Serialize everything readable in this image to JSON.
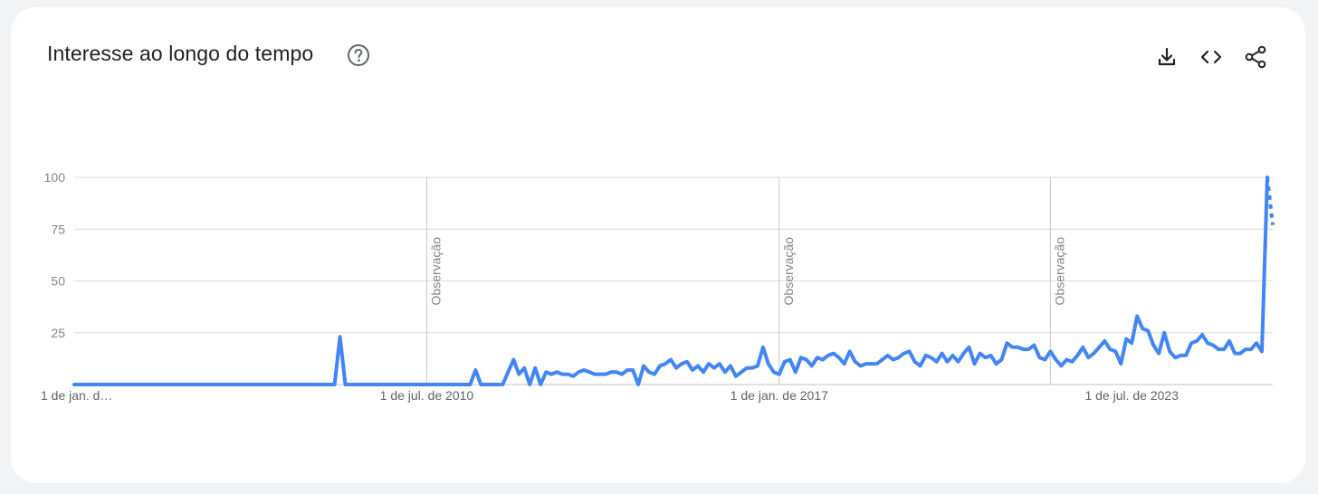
{
  "title": "Interesse ao longo do tempo",
  "icons": {
    "help": "help-circle-icon",
    "download": "download-icon",
    "embed": "code-embed-icon",
    "share": "share-icon"
  },
  "colors": {
    "line": "#4285f4",
    "grid": "#dadce0",
    "card": "#ffffff",
    "background": "#f1f3f4"
  },
  "chart_data": {
    "type": "line",
    "title": "Interesse ao longo do tempo",
    "xlabel": "",
    "ylabel": "",
    "ylim": [
      0,
      100
    ],
    "grid": true,
    "y_ticks": [
      100,
      75,
      50,
      25
    ],
    "x_tick_labels": [
      {
        "label": "1 de jan. d…",
        "value": 2004.0
      },
      {
        "label": "1 de jul. de 2010",
        "value": 2010.5
      },
      {
        "label": "1 de jan. de 2017",
        "value": 2017.0
      },
      {
        "label": "1 de jul. de 2023",
        "value": 2023.5
      }
    ],
    "annotations": [
      {
        "label": "Observação",
        "value": 2010.5
      },
      {
        "label": "Observação",
        "value": 2017.0
      },
      {
        "label": "Observação",
        "value": 2022.0
      }
    ],
    "series": [
      {
        "values": [
          [
            2004.0,
            0
          ],
          [
            2008.8,
            0
          ],
          [
            2008.9,
            23
          ],
          [
            2009.0,
            0
          ],
          [
            2011.3,
            0
          ],
          [
            2011.4,
            7
          ],
          [
            2011.5,
            0
          ],
          [
            2011.9,
            0
          ],
          [
            2012.1,
            12
          ],
          [
            2012.2,
            5
          ],
          [
            2012.3,
            8
          ],
          [
            2012.4,
            0
          ],
          [
            2012.5,
            8
          ],
          [
            2012.6,
            0
          ],
          [
            2012.7,
            6
          ],
          [
            2012.8,
            5
          ],
          [
            2012.9,
            6
          ],
          [
            2013.0,
            5
          ],
          [
            2013.1,
            5
          ],
          [
            2013.2,
            4
          ],
          [
            2013.3,
            6
          ],
          [
            2013.4,
            7
          ],
          [
            2013.5,
            6
          ],
          [
            2013.6,
            5
          ],
          [
            2013.7,
            5
          ],
          [
            2013.8,
            5
          ],
          [
            2013.9,
            6
          ],
          [
            2014.0,
            6
          ],
          [
            2014.1,
            5
          ],
          [
            2014.2,
            7
          ],
          [
            2014.3,
            7
          ],
          [
            2014.4,
            0
          ],
          [
            2014.5,
            9
          ],
          [
            2014.6,
            6
          ],
          [
            2014.7,
            5
          ],
          [
            2014.8,
            9
          ],
          [
            2014.9,
            10
          ],
          [
            2015.0,
            12
          ],
          [
            2015.1,
            8
          ],
          [
            2015.2,
            10
          ],
          [
            2015.3,
            11
          ],
          [
            2015.4,
            7
          ],
          [
            2015.5,
            9
          ],
          [
            2015.6,
            6
          ],
          [
            2015.7,
            10
          ],
          [
            2015.8,
            8
          ],
          [
            2015.9,
            10
          ],
          [
            2016.0,
            6
          ],
          [
            2016.1,
            9
          ],
          [
            2016.2,
            4
          ],
          [
            2016.3,
            6
          ],
          [
            2016.4,
            8
          ],
          [
            2016.5,
            8
          ],
          [
            2016.6,
            9
          ],
          [
            2016.7,
            18
          ],
          [
            2016.8,
            10
          ],
          [
            2016.9,
            6
          ],
          [
            2017.0,
            5
          ],
          [
            2017.1,
            11
          ],
          [
            2017.2,
            12
          ],
          [
            2017.3,
            6
          ],
          [
            2017.4,
            13
          ],
          [
            2017.5,
            12
          ],
          [
            2017.6,
            9
          ],
          [
            2017.7,
            13
          ],
          [
            2017.8,
            12
          ],
          [
            2017.9,
            14
          ],
          [
            2018.0,
            15
          ],
          [
            2018.1,
            13
          ],
          [
            2018.2,
            10
          ],
          [
            2018.3,
            16
          ],
          [
            2018.4,
            11
          ],
          [
            2018.5,
            9
          ],
          [
            2018.6,
            10
          ],
          [
            2018.7,
            10
          ],
          [
            2018.8,
            10
          ],
          [
            2018.9,
            12
          ],
          [
            2019.0,
            14
          ],
          [
            2019.1,
            12
          ],
          [
            2019.2,
            13
          ],
          [
            2019.3,
            15
          ],
          [
            2019.4,
            16
          ],
          [
            2019.5,
            11
          ],
          [
            2019.6,
            9
          ],
          [
            2019.7,
            14
          ],
          [
            2019.8,
            13
          ],
          [
            2019.9,
            11
          ],
          [
            2020.0,
            15
          ],
          [
            2020.1,
            11
          ],
          [
            2020.2,
            14
          ],
          [
            2020.3,
            11
          ],
          [
            2020.4,
            15
          ],
          [
            2020.5,
            18
          ],
          [
            2020.6,
            10
          ],
          [
            2020.7,
            15
          ],
          [
            2020.8,
            13
          ],
          [
            2020.9,
            14
          ],
          [
            2021.0,
            10
          ],
          [
            2021.1,
            12
          ],
          [
            2021.2,
            20
          ],
          [
            2021.3,
            18
          ],
          [
            2021.4,
            18
          ],
          [
            2021.5,
            17
          ],
          [
            2021.6,
            17
          ],
          [
            2021.7,
            19
          ],
          [
            2021.8,
            13
          ],
          [
            2021.9,
            12
          ],
          [
            2022.0,
            16
          ],
          [
            2022.1,
            12
          ],
          [
            2022.2,
            9
          ],
          [
            2022.3,
            12
          ],
          [
            2022.4,
            11
          ],
          [
            2022.5,
            14
          ],
          [
            2022.6,
            18
          ],
          [
            2022.7,
            13
          ],
          [
            2022.8,
            15
          ],
          [
            2022.9,
            18
          ],
          [
            2023.0,
            21
          ],
          [
            2023.1,
            17
          ],
          [
            2023.2,
            16
          ],
          [
            2023.3,
            10
          ],
          [
            2023.4,
            22
          ],
          [
            2023.5,
            20
          ],
          [
            2023.6,
            33
          ],
          [
            2023.7,
            27
          ],
          [
            2023.8,
            26
          ],
          [
            2023.9,
            19
          ],
          [
            2024.0,
            15
          ],
          [
            2024.1,
            25
          ],
          [
            2024.2,
            16
          ],
          [
            2024.3,
            13
          ],
          [
            2024.4,
            14
          ],
          [
            2024.5,
            14
          ],
          [
            2024.6,
            20
          ],
          [
            2024.7,
            21
          ],
          [
            2024.8,
            24
          ],
          [
            2024.9,
            20
          ],
          [
            2025.0,
            19
          ],
          [
            2025.1,
            17
          ],
          [
            2025.2,
            17
          ],
          [
            2025.3,
            21
          ],
          [
            2025.4,
            15
          ],
          [
            2025.5,
            15
          ],
          [
            2025.6,
            17
          ],
          [
            2025.7,
            17
          ],
          [
            2025.8,
            20
          ],
          [
            2025.9,
            16
          ],
          [
            2026.0,
            100
          ]
        ],
        "partial_values": [
          [
            2026.0,
            100
          ],
          [
            2026.1,
            77
          ]
        ]
      }
    ]
  }
}
